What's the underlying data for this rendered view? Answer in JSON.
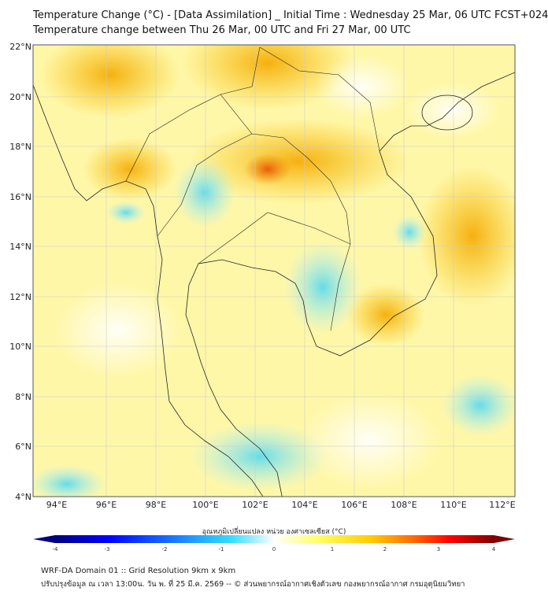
{
  "title": {
    "line1": "Temperature Change (°C) - [Data Assimilation] _ Initial Time : Wednesday 25 Mar, 06 UTC FCST+024",
    "line2": "Temperature change between Thu 26 Mar, 00 UTC and Fri 27 Mar, 00 UTC"
  },
  "lat_labels": [
    "22°N",
    "20°N",
    "18°N",
    "16°N",
    "14°N",
    "12°N",
    "10°N",
    "8°N",
    "6°N",
    "4°N"
  ],
  "lon_labels": [
    "94°E",
    "96°E",
    "98°E",
    "100°E",
    "102°E",
    "104°E",
    "106°E",
    "108°E",
    "110°E",
    "112°E"
  ],
  "colorbar": {
    "label": "อุณหภูมิเปลี่ยนแปลง หน่วย องศาเซลเซียส (°C)",
    "ticks": [
      "-4",
      "-3",
      "-2",
      "-1",
      "0",
      "1",
      "2",
      "3",
      "4"
    ],
    "range": [
      -4,
      4
    ],
    "colors": [
      "#00007f",
      "#0000ff",
      "#1e90ff",
      "#33ddff",
      "#ffffff",
      "#ffff66",
      "#ffcc00",
      "#ff6600",
      "#ff0000",
      "#7f0000"
    ]
  },
  "footer": {
    "line1": "WRF-DA Domain 01 :: Grid Resolution 9km x 9km",
    "line2": "ปรับปรุงข้อมูล ณ เวลา 13:00น. วัน พ. ที่ 25 มี.ค. 2569 -- © ส่วนพยากรณ์อากาศเชิงตัวเลข กองพยากรณ์อากาศ กรมอุตุนิยมวิทยา"
  }
}
